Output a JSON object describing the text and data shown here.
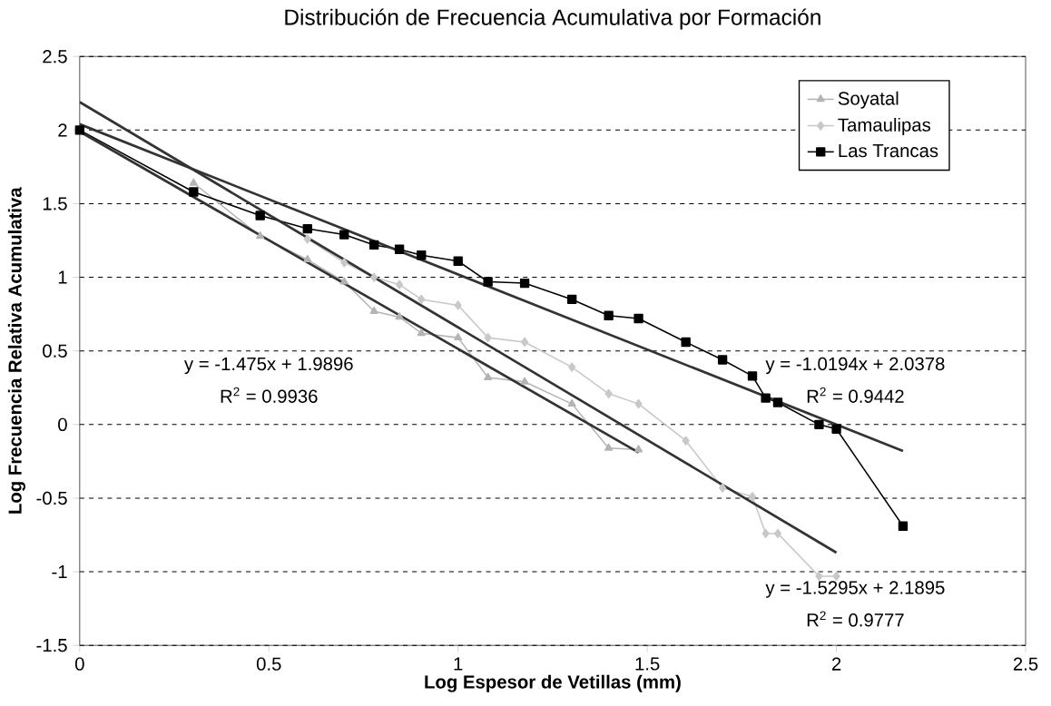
{
  "chart_data": {
    "type": "line",
    "title": "Distribución de Frecuencia Acumulativa por Formación",
    "xlabel": "Log Espesor de Vetillas (mm)",
    "ylabel": "Log Frecuencia Relativa Acumulativa",
    "xlim": [
      0,
      2.5
    ],
    "xticks": [
      0,
      0.5,
      1,
      1.5,
      2,
      2.5
    ],
    "ylim": [
      -1.5,
      2.5
    ],
    "yticks": [
      -1.5,
      -1,
      -0.5,
      0,
      0.5,
      1,
      1.5,
      2,
      2.5
    ],
    "grid": "y",
    "legend": "top right",
    "series": [
      {
        "name": "Soyatal",
        "color": "#b4b4b4",
        "marker": "triangle",
        "x": [
          0.301,
          0.477,
          0.602,
          0.699,
          0.778,
          0.845,
          0.903,
          1.0,
          1.079,
          1.176,
          1.301,
          1.398,
          1.477
        ],
        "values": [
          1.64,
          1.28,
          1.12,
          0.97,
          0.77,
          0.73,
          0.62,
          0.59,
          0.32,
          0.29,
          0.14,
          -0.16,
          -0.17
        ]
      },
      {
        "name": "Tamaulipas",
        "color": "#c8c8c8",
        "marker": "diamond",
        "x": [
          0.602,
          0.699,
          0.778,
          0.845,
          0.903,
          1.0,
          1.079,
          1.176,
          1.301,
          1.398,
          1.477,
          1.602,
          1.699,
          1.778,
          1.813,
          1.845,
          1.954,
          2.0
        ],
        "values": [
          1.26,
          1.1,
          1.0,
          0.95,
          0.85,
          0.81,
          0.59,
          0.56,
          0.39,
          0.21,
          0.14,
          -0.11,
          -0.43,
          -0.49,
          -0.74,
          -0.74,
          -1.03,
          -1.03
        ]
      },
      {
        "name": "Las Trancas",
        "color": "#000000",
        "marker": "square",
        "x": [
          0,
          0.301,
          0.477,
          0.602,
          0.699,
          0.778,
          0.845,
          0.903,
          1.0,
          1.079,
          1.176,
          1.301,
          1.398,
          1.477,
          1.602,
          1.699,
          1.778,
          1.813,
          1.845,
          1.954,
          2.0,
          2.176
        ],
        "values": [
          2.0,
          1.58,
          1.42,
          1.33,
          1.29,
          1.22,
          1.19,
          1.15,
          1.11,
          0.97,
          0.96,
          0.85,
          0.74,
          0.72,
          0.56,
          0.44,
          0.33,
          0.18,
          0.15,
          0.0,
          -0.03,
          -0.69
        ]
      },
      {
        "color": "#333333",
        "marker": "none",
        "x": [
          0,
          1.477
        ],
        "values": [
          1.99,
          -0.19
        ]
      },
      {
        "color": "#333333",
        "marker": "none",
        "x": [
          0,
          2.0
        ],
        "values": [
          2.19,
          -0.87
        ]
      },
      {
        "color": "#333333",
        "marker": "none",
        "x": [
          0,
          2.176
        ],
        "values": [
          2.04,
          -0.18
        ]
      }
    ],
    "annotations": [
      "y = -1.475x + 1.9896",
      "R$^{2}$ = 0.9936",
      "y = -1.0194x + 2.0378",
      "R$^{2}$ = 0.9442",
      "y = -1.5295x + 2.1895",
      "R$^{2}$ = 0.9777"
    ]
  }
}
